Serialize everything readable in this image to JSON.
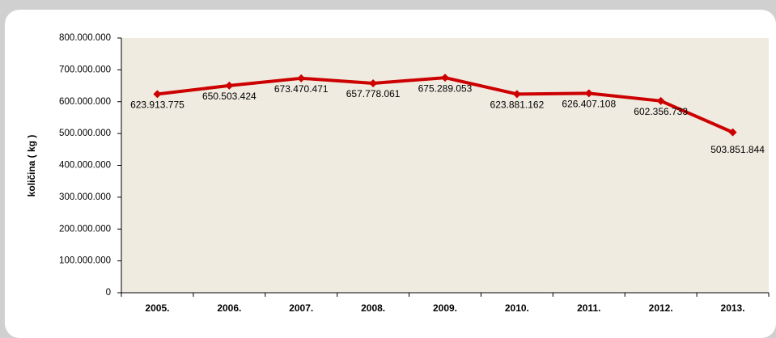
{
  "chart_data": {
    "type": "line",
    "y_label": "količina ( kg )",
    "categories": [
      "2005.",
      "2006.",
      "2007.",
      "2008.",
      "2009.",
      "2010.",
      "2011.",
      "2012.",
      "2013."
    ],
    "values": [
      623913775,
      650503424,
      673470471,
      657778061,
      675289053,
      623881162,
      626407108,
      602356733,
      503851844
    ],
    "value_labels": [
      "623.913.775",
      "650.503.424",
      "673.470.471",
      "657.778.061",
      "675.289.053",
      "623.881.162",
      "626.407.108",
      "602.356.733",
      "503.851.844"
    ],
    "color": "#cc0000",
    "plot_background": "#efebe0",
    "ylim": [
      0,
      800000000
    ],
    "yticks": [
      0,
      {
        "value": 100000000,
        "label": "100.000.000"
      },
      {
        "value": 200000000,
        "label": "200.000.000"
      },
      {
        "value": 300000000,
        "label": "300.000.000"
      },
      {
        "value": 400000000,
        "label": "400.000.000"
      },
      {
        "value": 500000000,
        "label": "500.000.000"
      },
      {
        "value": 600000000,
        "label": "600.000.000"
      },
      {
        "value": 700000000,
        "label": "700.000.000"
      },
      {
        "value": 800000000,
        "label": "800.000.000"
      }
    ]
  }
}
